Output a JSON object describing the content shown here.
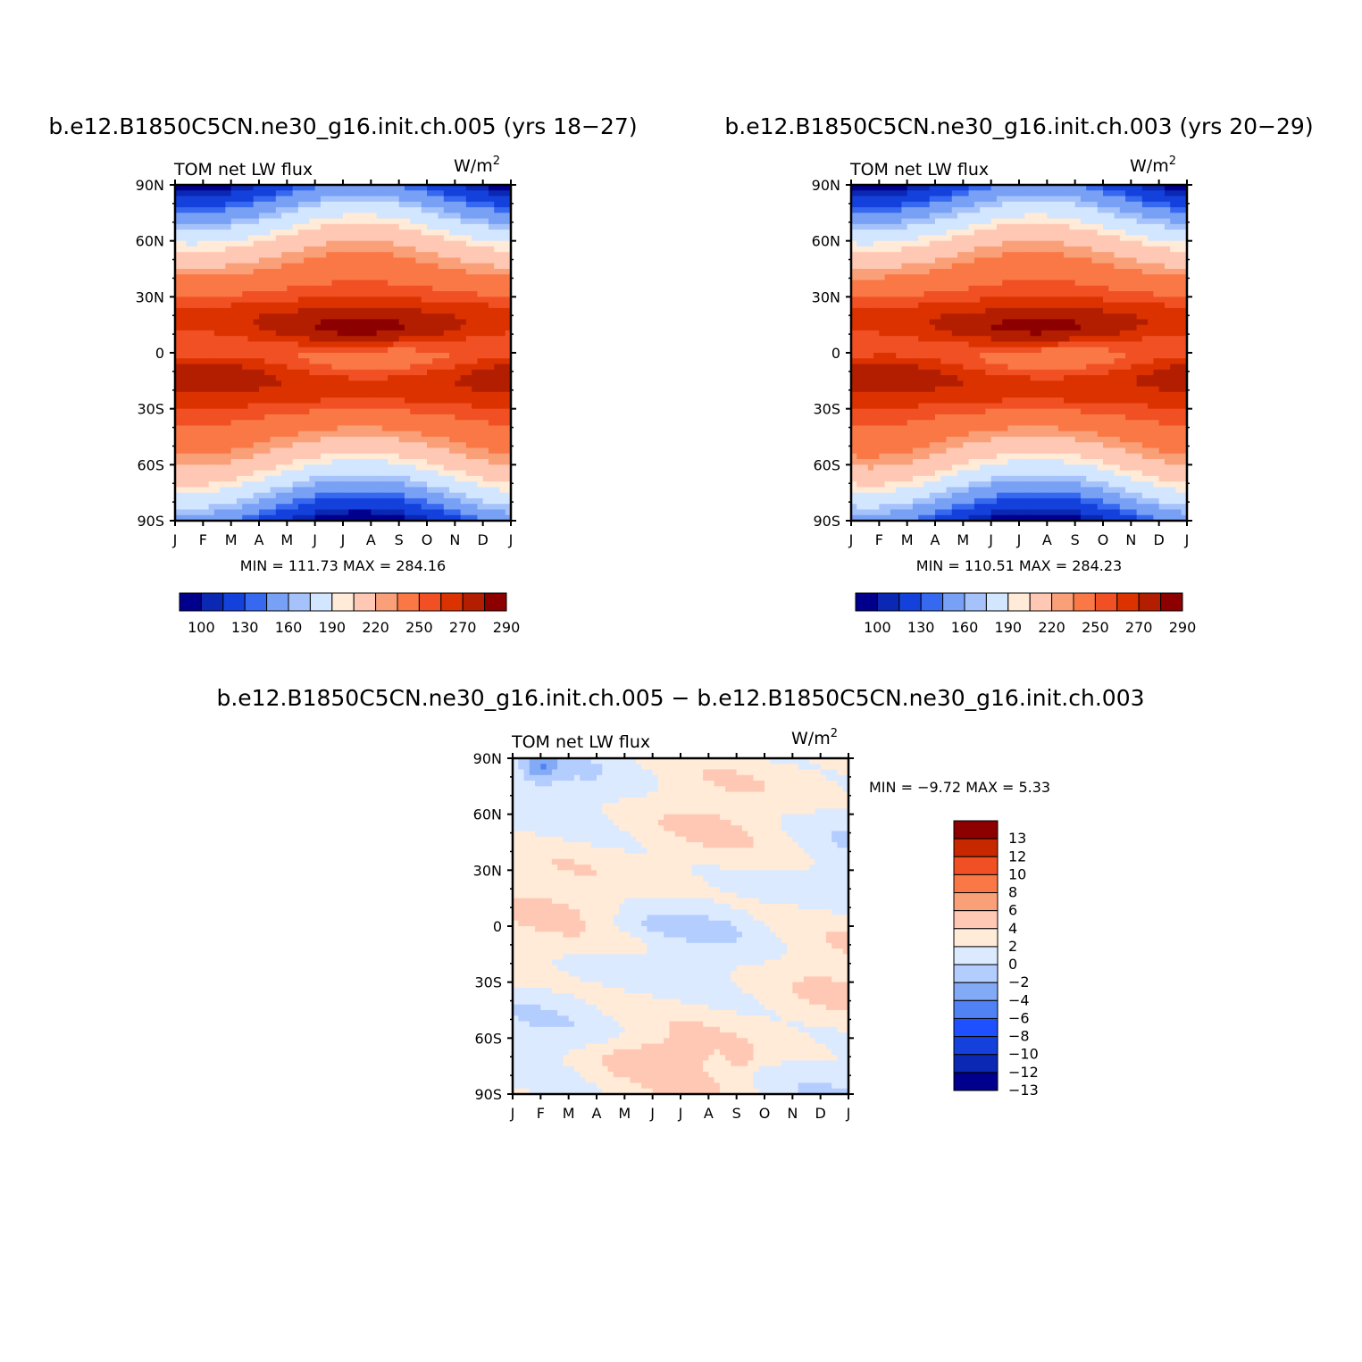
{
  "colors": {
    "abs_levels": [
      "#00008c",
      "#0a28b4",
      "#1441dc",
      "#3769f0",
      "#78a0f5",
      "#a5c3fa",
      "#d2e6ff",
      "#ffebd7",
      "#ffc8b4",
      "#faa078",
      "#fa7846",
      "#f05023",
      "#dc3200",
      "#b41e00",
      "#8c0000"
    ],
    "diff_levels": [
      "#00008c",
      "#0a28b4",
      "#1441dc",
      "#1e50ff",
      "#5082f5",
      "#82aaf5",
      "#b4cdff",
      "#dceaff",
      "#ffebd7",
      "#ffc8b4",
      "#faa078",
      "#fa7846",
      "#f05023",
      "#c82800",
      "#8c0000"
    ]
  },
  "panels": [
    {
      "id": "left",
      "title": "b.e12.B1850C5CN.ne30_g16.init.ch.005 (yrs 18−27)",
      "subtitle_left": "TOM  net  LW  flux",
      "units": "W/m",
      "units_sup": "2",
      "stats": "MIN  =  111.73  MAX  =  284.16",
      "max_adjust": 0.0
    },
    {
      "id": "right",
      "title": "b.e12.B1850C5CN.ne30_g16.init.ch.003 (yrs 20−29)",
      "subtitle_left": "TOM  net  LW  flux",
      "units": "W/m",
      "units_sup": "2",
      "stats": "MIN  =  110.51  MAX  =  284.23",
      "max_adjust": 0.6
    },
    {
      "id": "diff",
      "title": "b.e12.B1850C5CN.ne30_g16.init.ch.005  −  b.e12.B1850C5CN.ne30_g16.init.ch.003",
      "subtitle_left": "TOM  net  LW  flux",
      "units": "W/m",
      "units_sup": "2",
      "stats": "MIN  =   −9.72  MAX  =    5.33"
    }
  ],
  "chart_data": [
    {
      "type": "heatmap",
      "title": "b.e12.B1850C5CN.ne30_g16.init.ch.005 (yrs 18−27)",
      "x_tick_labels": [
        "J",
        "F",
        "M",
        "A",
        "M",
        "J",
        "J",
        "A",
        "S",
        "O",
        "N",
        "D",
        "J"
      ],
      "y_tick_labels": [
        "90N",
        "60N",
        "30N",
        "0",
        "30S",
        "60S",
        "90S"
      ],
      "y_range": [
        -90,
        90
      ],
      "units": "W/m2",
      "min": 111.73,
      "max": 284.16,
      "colorbar_levels": [
        100,
        110,
        130,
        140,
        160,
        170,
        190,
        200,
        220,
        230,
        250,
        260,
        270,
        280,
        290
      ],
      "colorbar_labels": [
        "100",
        "130",
        "160",
        "190",
        "220",
        "250",
        "270",
        "290"
      ]
    },
    {
      "type": "heatmap",
      "title": "b.e12.B1850C5CN.ne30_g16.init.ch.003 (yrs 20−29)",
      "x_tick_labels": [
        "J",
        "F",
        "M",
        "A",
        "M",
        "J",
        "J",
        "A",
        "S",
        "O",
        "N",
        "D",
        "J"
      ],
      "y_tick_labels": [
        "90N",
        "60N",
        "30N",
        "0",
        "30S",
        "60S",
        "90S"
      ],
      "y_range": [
        -90,
        90
      ],
      "units": "W/m2",
      "min": 110.51,
      "max": 284.23,
      "colorbar_levels": [
        100,
        110,
        130,
        140,
        160,
        170,
        190,
        200,
        220,
        230,
        250,
        260,
        270,
        280,
        290
      ],
      "colorbar_labels": [
        "100",
        "130",
        "160",
        "190",
        "220",
        "250",
        "270",
        "290"
      ]
    },
    {
      "type": "heatmap",
      "title": "b.e12.B1850C5CN.ne30_g16.init.ch.005 − b.e12.B1850C5CN.ne30_g16.init.ch.003",
      "x_tick_labels": [
        "J",
        "F",
        "M",
        "A",
        "M",
        "J",
        "J",
        "A",
        "S",
        "O",
        "N",
        "D",
        "J"
      ],
      "y_tick_labels": [
        "90N",
        "60N",
        "30N",
        "0",
        "30S",
        "60S",
        "90S"
      ],
      "y_range": [
        -90,
        90
      ],
      "units": "W/m2",
      "min": -9.72,
      "max": 5.33,
      "colorbar_levels": [
        13,
        12,
        10,
        8,
        6,
        4,
        2,
        0,
        -2,
        -4,
        -6,
        -8,
        -10,
        -12,
        -13
      ],
      "colorbar_labels": [
        "13",
        "12",
        "10",
        "8",
        "6",
        "4",
        "2",
        "0",
        "−2",
        "−4",
        "−6",
        "−8",
        "−10",
        "−12",
        "−13"
      ]
    }
  ]
}
